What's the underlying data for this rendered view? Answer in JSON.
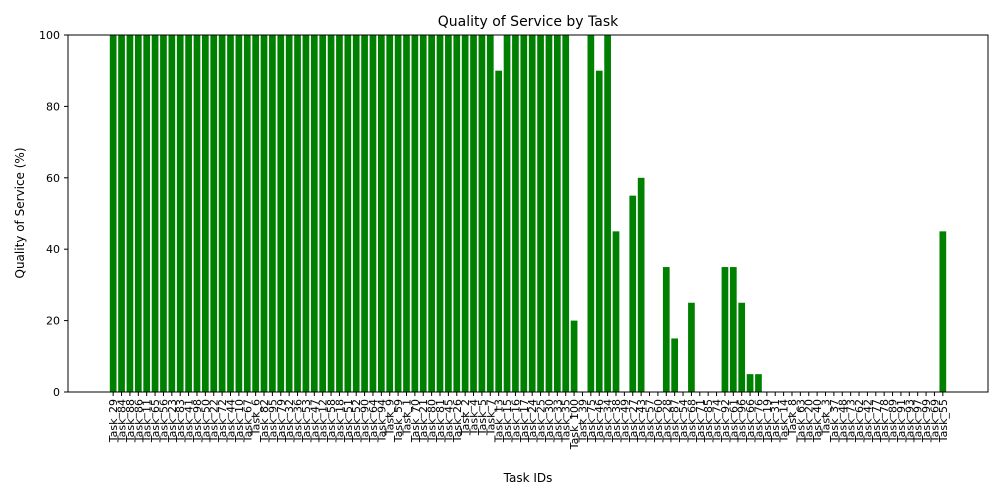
{
  "chart_data": {
    "type": "bar",
    "title": "Quality of Service by Task",
    "xlabel": "Task IDs",
    "ylabel": "Quality of Service (%)",
    "categories": [
      "Task_29",
      "Task_84",
      "Task_88",
      "Task_86",
      "Task_11",
      "Task_65",
      "Task_56",
      "Task_23",
      "Task_83",
      "Task_41",
      "Task_98",
      "Task_50",
      "Task_22",
      "Task_72",
      "Task_44",
      "Task_10",
      "Task_67",
      "Task_6",
      "Task_82",
      "Task_95",
      "Task_79",
      "Task_32",
      "Task_36",
      "Task_53",
      "Task_47",
      "Task_12",
      "Task_58",
      "Task_18",
      "Task_51",
      "Task_52",
      "Task_90",
      "Task_64",
      "Task_94",
      "Task_9",
      "Task_59",
      "Task_1",
      "Task_70",
      "Task_21",
      "Task_80",
      "Task_81",
      "Task_45",
      "Task_26",
      "Task_2",
      "Task_4",
      "Task_5",
      "Task_7",
      "Task_13",
      "Task_15",
      "Task_16",
      "Task_17",
      "Task_24",
      "Task_25",
      "Task_30",
      "Task_33",
      "Task_35",
      "Task_100",
      "Task_39",
      "Task_75",
      "Task_46",
      "Task_34",
      "Task_38",
      "Task_49",
      "Task_27",
      "Task_43",
      "Task_57",
      "Task_60",
      "Task_28",
      "Task_87",
      "Task_54",
      "Task_68",
      "Task_71",
      "Task_85",
      "Task_74",
      "Task_92",
      "Task_61",
      "Task_96",
      "Task_66",
      "Task_76",
      "Task_19",
      "Task_31",
      "Task_14",
      "Task_8",
      "Task_63",
      "Task_20",
      "Task_40",
      "Task_3",
      "Task_37",
      "Task_48",
      "Task_73",
      "Task_62",
      "Task_42",
      "Task_77",
      "Task_78",
      "Task_89",
      "Task_91",
      "Task_93",
      "Task_97",
      "Task_99",
      "Task_69",
      "Task_55"
    ],
    "values": [
      100,
      100,
      100,
      100,
      100,
      100,
      100,
      100,
      100,
      100,
      100,
      100,
      100,
      100,
      100,
      100,
      100,
      100,
      100,
      100,
      100,
      100,
      100,
      100,
      100,
      100,
      100,
      100,
      100,
      100,
      100,
      100,
      100,
      100,
      100,
      100,
      100,
      100,
      100,
      100,
      100,
      100,
      100,
      100,
      100,
      100,
      90,
      100,
      100,
      100,
      100,
      100,
      100,
      100,
      100,
      20,
      0,
      100,
      90,
      100,
      45,
      0,
      55,
      60,
      0,
      0,
      35,
      15,
      0,
      25,
      0,
      0,
      0,
      35,
      35,
      25,
      5,
      5,
      0,
      0,
      0,
      0,
      0,
      0,
      0,
      0,
      0,
      0,
      0,
      0,
      0,
      0,
      0,
      0,
      0,
      0,
      0,
      0,
      0,
      45
    ],
    "color": "#008000",
    "ylim": [
      0,
      100
    ],
    "yticks": [
      0,
      20,
      40,
      60,
      80,
      100
    ],
    "grid": false
  }
}
